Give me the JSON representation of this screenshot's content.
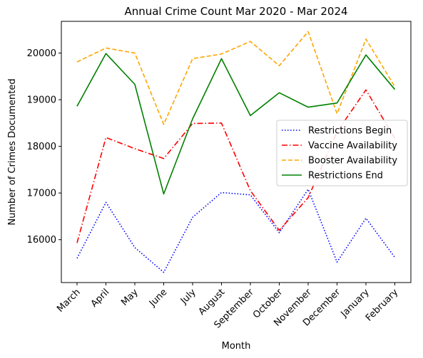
{
  "chart_data": {
    "type": "line",
    "title": "Annual Crime Count Mar 2020 - Mar 2024",
    "xlabel": "Month",
    "ylabel": "Number of Crimes Documented",
    "categories": [
      "March",
      "April",
      "May",
      "June",
      "July",
      "August",
      "September",
      "October",
      "November",
      "December",
      "January",
      "February"
    ],
    "ylim": [
      15080,
      20680
    ],
    "yticks": [
      16000,
      17000,
      18000,
      19000,
      20000
    ],
    "grid": false,
    "legend_position": "center-right",
    "series": [
      {
        "name": "Restrictions Begin",
        "color": "#0000ff",
        "style": "dotted",
        "values": [
          15600,
          16800,
          15830,
          15300,
          16480,
          17010,
          16960,
          16150,
          17080,
          15520,
          16460,
          15620
        ]
      },
      {
        "name": "Vaccine Availability",
        "color": "#ff0000",
        "style": "dashdot",
        "values": [
          15930,
          18190,
          17950,
          17740,
          18490,
          18500,
          17050,
          16200,
          16900,
          18310,
          19210,
          18170
        ]
      },
      {
        "name": "Booster Availability",
        "color": "#ffa500",
        "style": "dashed",
        "values": [
          19810,
          20110,
          20000,
          18470,
          19880,
          19980,
          20250,
          19730,
          20460,
          18700,
          20300,
          19280
        ]
      },
      {
        "name": "Restrictions End",
        "color": "#008000",
        "style": "solid",
        "values": [
          18860,
          19990,
          19330,
          16980,
          18590,
          19880,
          18660,
          19150,
          18840,
          18930,
          19960,
          19220
        ]
      }
    ]
  }
}
